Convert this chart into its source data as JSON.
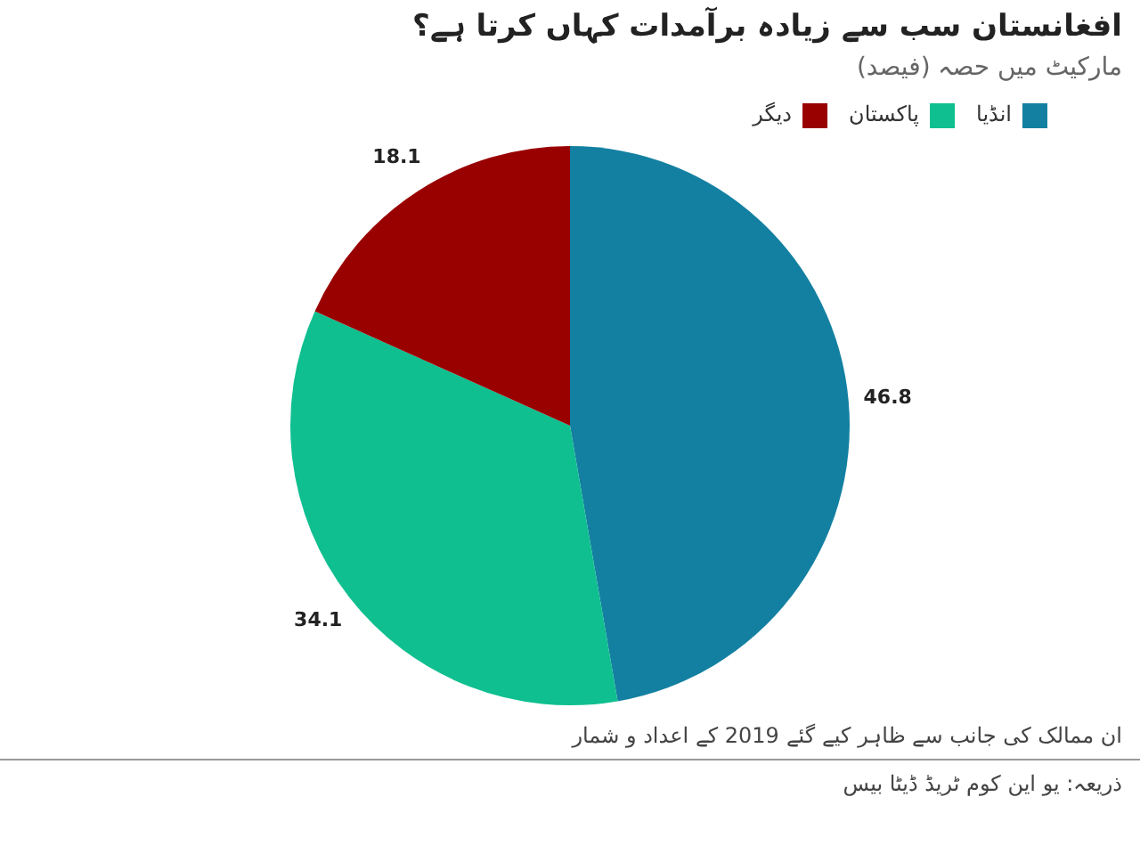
{
  "chart_data": {
    "type": "pie",
    "title": "افغانستان سب سے زیادہ برآمدات کہاں کرتا ہے؟",
    "subtitle": "مارکیٹ میں حصہ (فیصد)",
    "categories": [
      "انڈیا",
      "پاکستان",
      "دیگر"
    ],
    "values": [
      46.8,
      34.1,
      18.1
    ],
    "colors": [
      "#1380a1",
      "#0fbf8f",
      "#990000"
    ],
    "data_labels": true,
    "legend": "top right",
    "annotations": [
      "ان ممالک کی جانب سے ظاہر کیے گئے 2019 کے اعداد و شمار",
      "ذریعہ: یو این کوم ٹریڈ ڈیٹا بیس"
    ]
  }
}
